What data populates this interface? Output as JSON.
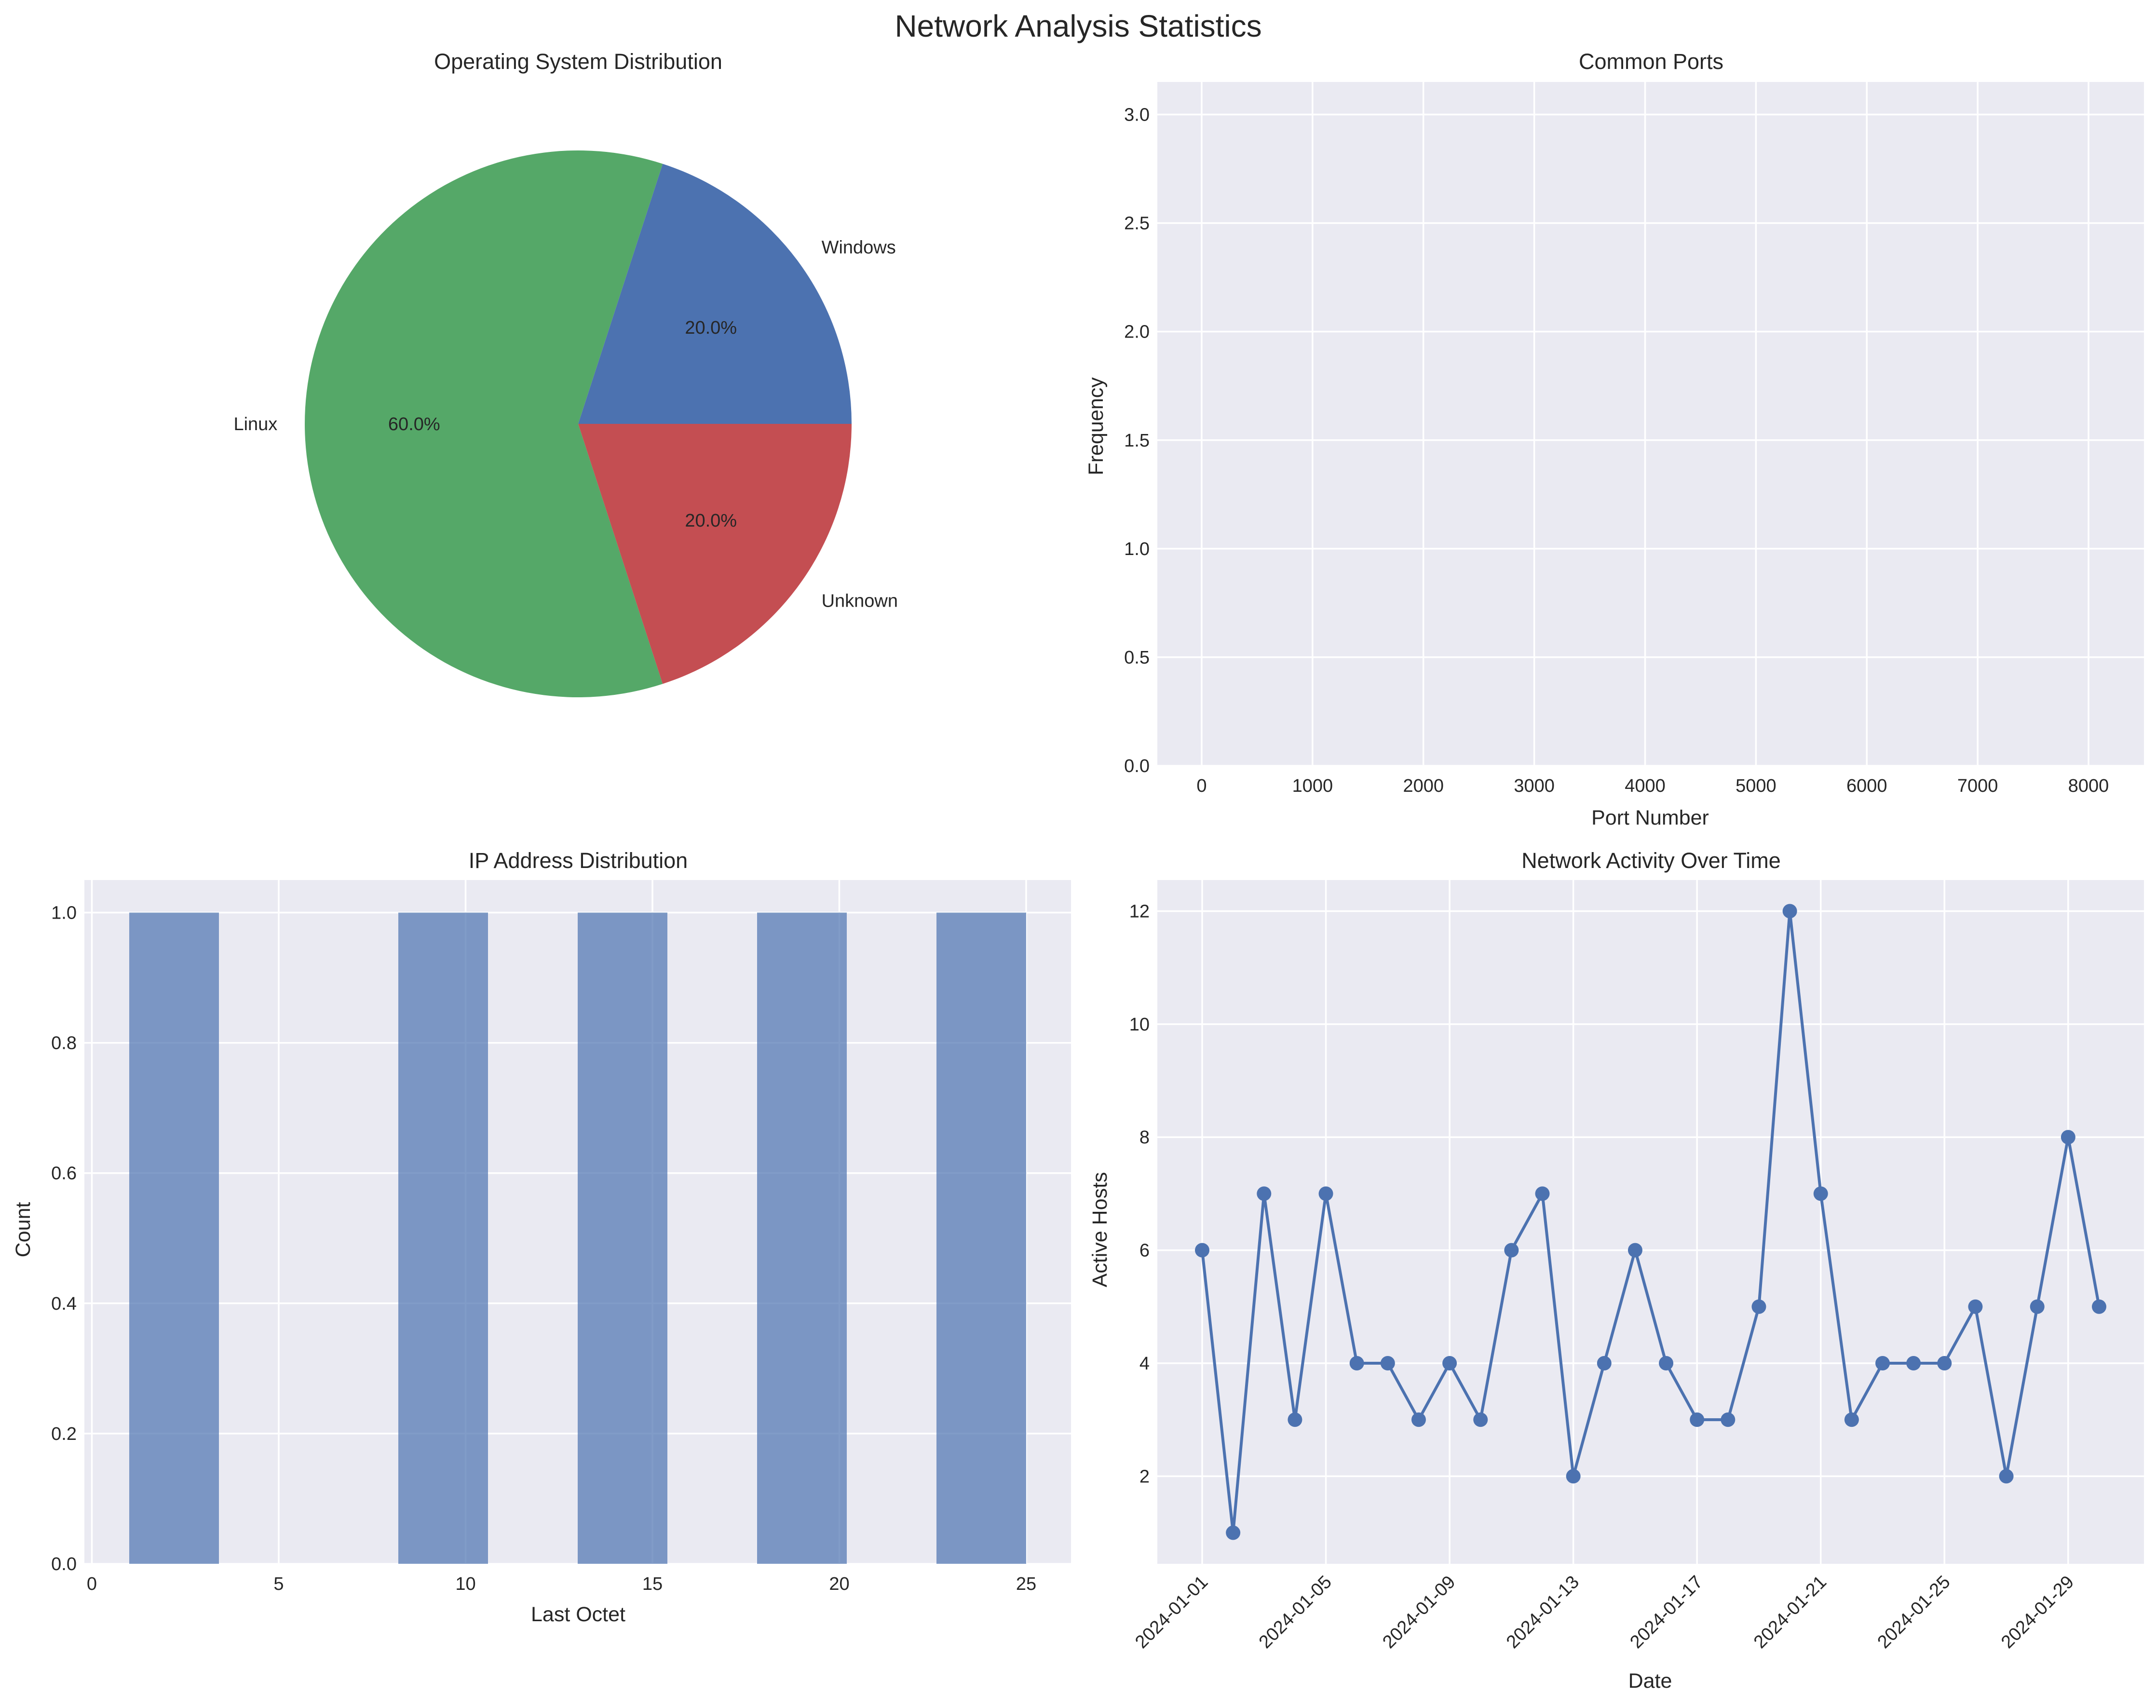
{
  "figure": {
    "title": "Network Analysis Statistics",
    "background": "#ffffff",
    "axes_facecolor": "#eaeaf2"
  },
  "chart_data": [
    {
      "id": "os",
      "type": "pie",
      "title": "Operating System Distribution",
      "labels": [
        "Windows",
        "Linux",
        "Unknown"
      ],
      "values": [
        20.0,
        60.0,
        20.0
      ],
      "autopct": [
        "20.0%",
        "60.0%",
        "20.0%"
      ],
      "colors": [
        "#4c72b0",
        "#55a868",
        "#c44e52"
      ],
      "startangle": 0
    },
    {
      "id": "ports",
      "type": "bar",
      "title": "Common Ports",
      "xlabel": "Port Number",
      "ylabel": "Frequency",
      "categories": [],
      "values": [],
      "xlim": [
        -400,
        8500
      ],
      "ylim": [
        0,
        3.15
      ],
      "xticks": [
        0,
        1000,
        2000,
        3000,
        4000,
        5000,
        6000,
        7000,
        8000
      ],
      "xtick_labels": [
        "0",
        "1000",
        "2000",
        "3000",
        "4000",
        "5000",
        "6000",
        "7000",
        "8000"
      ],
      "yticks": [
        0.0,
        0.5,
        1.0,
        1.5,
        2.0,
        2.5,
        3.0
      ],
      "ytick_labels": [
        "0.0",
        "0.5",
        "1.0",
        "1.5",
        "2.0",
        "2.5",
        "3.0"
      ]
    },
    {
      "id": "ip",
      "type": "bar",
      "title": "IP Address Distribution",
      "xlabel": "Last Octet",
      "ylabel": "Count",
      "bins": [
        [
          1.0,
          3.4
        ],
        [
          8.2,
          10.6
        ],
        [
          13.0,
          15.4
        ],
        [
          17.8,
          20.2
        ],
        [
          22.6,
          25.0
        ]
      ],
      "values": [
        1,
        1,
        1,
        1,
        1
      ],
      "color": "#4c72b0",
      "xlim": [
        -0.2,
        26.2
      ],
      "ylim": [
        0,
        1.05
      ],
      "xticks": [
        0,
        5,
        10,
        15,
        20,
        25
      ],
      "xtick_labels": [
        "0",
        "5",
        "10",
        "15",
        "20",
        "25"
      ],
      "yticks": [
        0.0,
        0.2,
        0.4,
        0.6,
        0.8,
        1.0
      ],
      "ytick_labels": [
        "0.0",
        "0.2",
        "0.4",
        "0.6",
        "0.8",
        "1.0"
      ]
    },
    {
      "id": "activity",
      "type": "line",
      "title": "Network Activity Over Time",
      "xlabel": "Date",
      "ylabel": "Active Hosts",
      "x": [
        "2024-01-01",
        "2024-01-02",
        "2024-01-03",
        "2024-01-04",
        "2024-01-05",
        "2024-01-06",
        "2024-01-07",
        "2024-01-08",
        "2024-01-09",
        "2024-01-10",
        "2024-01-11",
        "2024-01-12",
        "2024-01-13",
        "2024-01-14",
        "2024-01-15",
        "2024-01-16",
        "2024-01-17",
        "2024-01-18",
        "2024-01-19",
        "2024-01-20",
        "2024-01-21",
        "2024-01-22",
        "2024-01-23",
        "2024-01-24",
        "2024-01-25",
        "2024-01-26",
        "2024-01-27",
        "2024-01-28",
        "2024-01-29",
        "2024-01-30"
      ],
      "values": [
        6,
        1,
        7,
        3,
        7,
        4,
        4,
        3,
        4,
        3,
        6,
        7,
        2,
        4,
        6,
        4,
        3,
        3,
        5,
        12,
        7,
        3,
        4,
        4,
        4,
        5,
        2,
        5,
        8,
        5
      ],
      "color": "#4c72b0",
      "xlim": [
        -1.45,
        30.45
      ],
      "ylim": [
        0.45,
        12.55
      ],
      "xticks": [
        0,
        4,
        8,
        12,
        16,
        20,
        24,
        28
      ],
      "xtick_labels": [
        "2024-01-01",
        "2024-01-05",
        "2024-01-09",
        "2024-01-13",
        "2024-01-17",
        "2024-01-21",
        "2024-01-25",
        "2024-01-29"
      ],
      "yticks": [
        2,
        4,
        6,
        8,
        10,
        12
      ],
      "ytick_labels": [
        "2",
        "4",
        "6",
        "8",
        "10",
        "12"
      ]
    }
  ]
}
